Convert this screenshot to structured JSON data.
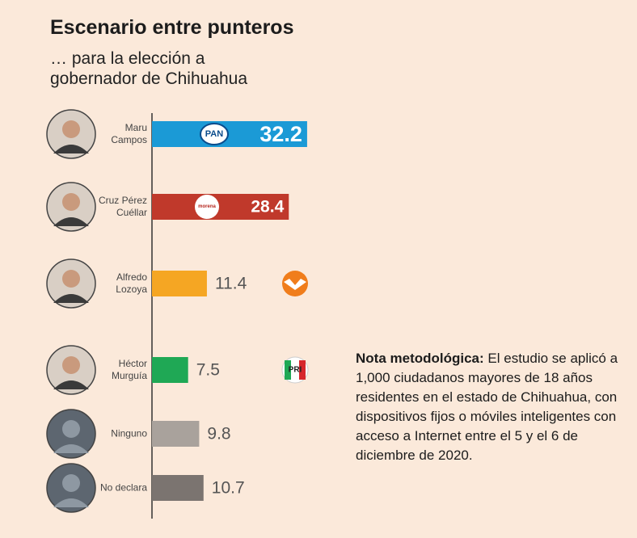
{
  "chart_data": {
    "type": "hbar",
    "title": "Escenario entre punteros",
    "subtitle": "… para la elección a gobernador de Chihuahua",
    "categories": [
      "Maru Campos",
      "Cruz Pérez Cuéllar",
      "Alfredo Lozoya",
      "Héctor Murguía",
      "Ninguno",
      "No declara"
    ],
    "values": [
      32.2,
      28.4,
      11.4,
      7.5,
      9.8,
      10.7
    ],
    "colors": [
      "#1b9ad6",
      "#c0392b",
      "#f5a623",
      "#1fa855",
      "#a9a29c",
      "#7b7470"
    ],
    "parties": [
      "PAN",
      "morena",
      null,
      "PRI",
      null,
      null
    ],
    "note_heading": "Nota metodológica:",
    "note": "El estudio se aplicó a 1,000 ciudadanos mayores de 18 años residentes en el estado de Chihuahua, con dispositivos fijos o móviles inteligentes con acceso a Internet entre el 5 y el 6 de diciembre de 2020."
  }
}
